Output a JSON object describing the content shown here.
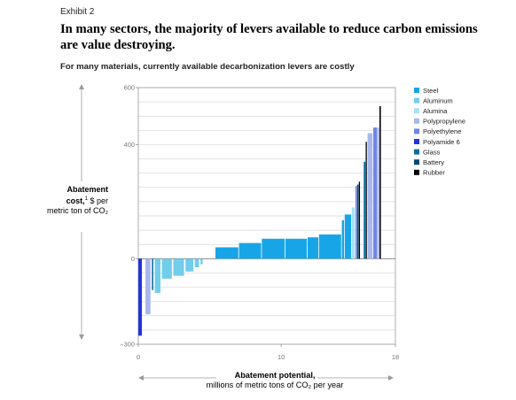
{
  "exhibit_label": "Exhibit 2",
  "headline": "In many sectors, the majority of levers available to reduce carbon emissions are value destroying.",
  "chart_data": {
    "type": "bar",
    "subtitle": "For many materials, currently available decarbonization levers are costly",
    "ylabel_bold": "Abatement cost,",
    "ylabel_sup": "1",
    "ylabel_rest": " $ per metric ton of CO₂",
    "xlabel_bold": "Abatement potential,",
    "xlabel_rest": "millions of metric tons of CO₂ per year",
    "xlim": [
      0,
      18
    ],
    "ylim": [
      -300,
      600
    ],
    "x_ticks": [
      0,
      10,
      18
    ],
    "y_ticks": [
      -300,
      0,
      400,
      600
    ],
    "y_tick_labels": [
      "−300",
      "0",
      "400",
      "600"
    ],
    "grid": true,
    "legend_position": "right",
    "series": [
      {
        "name": "Steel",
        "color": "#17a5e8"
      },
      {
        "name": "Aluminum",
        "color": "#72cdea"
      },
      {
        "name": "Alumina",
        "color": "#a9e2f3"
      },
      {
        "name": "Polypropylene",
        "color": "#a9b7ee"
      },
      {
        "name": "Polyethylene",
        "color": "#7285e0"
      },
      {
        "name": "Polyamide 6",
        "color": "#2233d6"
      },
      {
        "name": "Glass",
        "color": "#0f6d9c"
      },
      {
        "name": "Battery",
        "color": "#0a4870"
      },
      {
        "name": "Rubber",
        "color": "#000000"
      }
    ],
    "bars": [
      {
        "series": "Polyamide 6",
        "x0": 0.0,
        "x1": 0.25,
        "value": -270
      },
      {
        "series": "Polypropylene",
        "x0": 0.5,
        "x1": 0.85,
        "value": -195
      },
      {
        "series": "Glass",
        "x0": 0.95,
        "x1": 1.05,
        "value": -110
      },
      {
        "series": "Aluminum",
        "x0": 1.15,
        "x1": 1.55,
        "value": -120
      },
      {
        "series": "Aluminum",
        "x0": 1.65,
        "x1": 2.35,
        "value": -70
      },
      {
        "series": "Aluminum",
        "x0": 2.45,
        "x1": 3.2,
        "value": -60
      },
      {
        "series": "Aluminum",
        "x0": 3.3,
        "x1": 3.85,
        "value": -45
      },
      {
        "series": "Aluminum",
        "x0": 3.95,
        "x1": 4.25,
        "value": -30
      },
      {
        "series": "Aluminum",
        "x0": 4.35,
        "x1": 4.5,
        "value": -20
      },
      {
        "series": "Steel",
        "x0": 5.4,
        "x1": 7.0,
        "value": 40
      },
      {
        "series": "Steel",
        "x0": 7.05,
        "x1": 8.6,
        "value": 55
      },
      {
        "series": "Steel",
        "x0": 8.65,
        "x1": 10.25,
        "value": 70
      },
      {
        "series": "Steel",
        "x0": 10.3,
        "x1": 11.8,
        "value": 70
      },
      {
        "series": "Steel",
        "x0": 11.85,
        "x1": 12.6,
        "value": 75
      },
      {
        "series": "Steel",
        "x0": 12.65,
        "x1": 14.2,
        "value": 85
      },
      {
        "series": "Steel",
        "x0": 14.25,
        "x1": 14.4,
        "value": 135
      },
      {
        "series": "Steel",
        "x0": 14.45,
        "x1": 14.9,
        "value": 155
      },
      {
        "series": "Alumina",
        "x0": 14.95,
        "x1": 15.15,
        "value": 180
      },
      {
        "series": "Polyethylene",
        "x0": 15.2,
        "x1": 15.3,
        "value": 255
      },
      {
        "series": "Battery",
        "x0": 15.32,
        "x1": 15.42,
        "value": 260
      },
      {
        "series": "Rubber",
        "x0": 15.44,
        "x1": 15.52,
        "value": 270
      },
      {
        "series": "Glass",
        "x0": 15.78,
        "x1": 15.9,
        "value": 340
      },
      {
        "series": "Rubber",
        "x0": 15.92,
        "x1": 16.0,
        "value": 410
      },
      {
        "series": "Polypropylene",
        "x0": 16.05,
        "x1": 16.4,
        "value": 440
      },
      {
        "series": "Polyethylene",
        "x0": 16.45,
        "x1": 16.7,
        "value": 460
      },
      {
        "series": "Polypropylene",
        "x0": 16.72,
        "x1": 16.85,
        "value": 460
      },
      {
        "series": "Rubber",
        "x0": 16.88,
        "x1": 16.98,
        "value": 535
      }
    ]
  }
}
